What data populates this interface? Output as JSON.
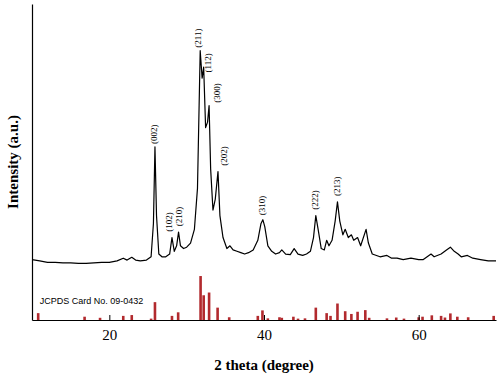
{
  "chart_data": {
    "type": "line",
    "x_label": "2 theta (degree)",
    "y_label": "Intensity (a.u.)",
    "xlim": [
      10,
      70
    ],
    "xticks": [
      20,
      40,
      60
    ],
    "ylim": [
      0,
      115
    ],
    "tick_labels": "x",
    "grid": false,
    "series": [
      {
        "type": "line",
        "color": "#000000",
        "x": [
          10,
          11,
          12,
          13,
          14,
          15,
          16,
          17,
          18,
          19,
          20,
          21,
          21.8,
          22.3,
          22.9,
          23.4,
          24,
          24.8,
          25.4,
          25.7,
          25.9,
          26.1,
          26.4,
          26.8,
          27.3,
          27.8,
          28.1,
          28.4,
          28.7,
          28.95,
          29.2,
          29.6,
          30,
          30.5,
          31,
          31.4,
          31.75,
          32.0,
          32.2,
          32.45,
          32.7,
          32.9,
          33.1,
          33.4,
          33.7,
          34.05,
          34.3,
          34.7,
          35.2,
          35.6,
          36,
          36.5,
          37,
          37.5,
          38,
          38.6,
          39.2,
          39.6,
          39.85,
          40.1,
          40.5,
          41,
          41.5,
          42,
          42.3,
          42.8,
          43.4,
          43.9,
          44.4,
          45,
          45.5,
          46,
          46.4,
          46.7,
          47,
          47.4,
          47.8,
          48.1,
          48.4,
          48.8,
          49.2,
          49.5,
          49.8,
          50.2,
          50.5,
          50.9,
          51.3,
          51.6,
          52.1,
          52.5,
          53.2,
          53.5,
          54,
          55,
          55.9,
          56.5,
          57.2,
          58,
          59,
          60,
          60.6,
          61.6,
          62,
          62.9,
          63.6,
          64.1,
          64.6,
          65.1,
          65.5,
          66.3,
          67,
          68,
          69,
          70
        ],
        "values": [
          22,
          21.5,
          21,
          21,
          20.8,
          20.8,
          20.6,
          20.6,
          20.8,
          21,
          21,
          21.5,
          22.5,
          21.8,
          22.8,
          21.8,
          21.5,
          21.8,
          23,
          35,
          63,
          38,
          24,
          23,
          23,
          24,
          30,
          25,
          27,
          32,
          27,
          26,
          26.5,
          28,
          33,
          48,
          98,
          88,
          92,
          70,
          72,
          78,
          55,
          40,
          44,
          54,
          38,
          30,
          26,
          27,
          25.5,
          25,
          24.5,
          24,
          24.5,
          25.5,
          29,
          35,
          36.5,
          34,
          27,
          25,
          24,
          24.5,
          25.5,
          24,
          23.8,
          26,
          24,
          23.5,
          24,
          25,
          30,
          38,
          33,
          26,
          25.5,
          29,
          27,
          29,
          36,
          43,
          36,
          31,
          33,
          30,
          31,
          29,
          30,
          27,
          33,
          28,
          24,
          23,
          23.5,
          22.5,
          22.5,
          22,
          22.5,
          22,
          22,
          24,
          23,
          24,
          25.5,
          26.5,
          25,
          24,
          23,
          23.5,
          22.5,
          22,
          21.5,
          21.5
        ]
      },
      {
        "type": "bar",
        "color": "#b22a2e",
        "x": [
          10.8,
          16.8,
          18.8,
          21.8,
          22.9,
          25.4,
          25.9,
          28.1,
          28.9,
          31.8,
          32.2,
          32.9,
          34.0,
          35.5,
          39.2,
          39.8,
          40.5,
          42.0,
          42.3,
          43.8,
          44.4,
          45.3,
          46.7,
          48.1,
          48.6,
          49.5,
          50.5,
          51.3,
          52.1,
          53.1,
          53.6,
          55.9,
          57.1,
          58.1,
          60.0,
          60.5,
          61.7,
          62.9,
          63.4,
          64.1,
          65.0,
          66.4,
          69.7
        ],
        "values": [
          2.5,
          1.2,
          0.8,
          1.5,
          1.8,
          0.5,
          6.5,
          1.5,
          2.8,
          16,
          9,
          10,
          4.5,
          1,
          1.5,
          3.5,
          0.6,
          1,
          0.8,
          1.2,
          0.5,
          0.6,
          4.5,
          2.5,
          1.5,
          6,
          3.2,
          2.2,
          3,
          3.6,
          0.8,
          0.6,
          0.9,
          0.5,
          1,
          1.2,
          1.7,
          1.5,
          0.9,
          2.4,
          1.2,
          1,
          1.5
        ]
      }
    ],
    "annotations": [
      {
        "text": "(002)",
        "x": 25.9,
        "y": 63
      },
      {
        "text": "(102)",
        "x": 27.9,
        "y": 31
      },
      {
        "text": "(210)",
        "x": 29.1,
        "y": 33
      },
      {
        "text": "(211)",
        "x": 31.6,
        "y": 98
      },
      {
        "text": "(112)",
        "x": 32.9,
        "y": 89
      },
      {
        "text": "(300)",
        "x": 34.0,
        "y": 78
      },
      {
        "text": "(202)",
        "x": 34.9,
        "y": 55
      },
      {
        "text": "(310)",
        "x": 39.85,
        "y": 37
      },
      {
        "text": "(222)",
        "x": 46.7,
        "y": 39
      },
      {
        "text": "(213)",
        "x": 49.5,
        "y": 44
      },
      {
        "text": "JCPDS Card No. 09-0432",
        "x": 11,
        "y": 6
      }
    ]
  }
}
